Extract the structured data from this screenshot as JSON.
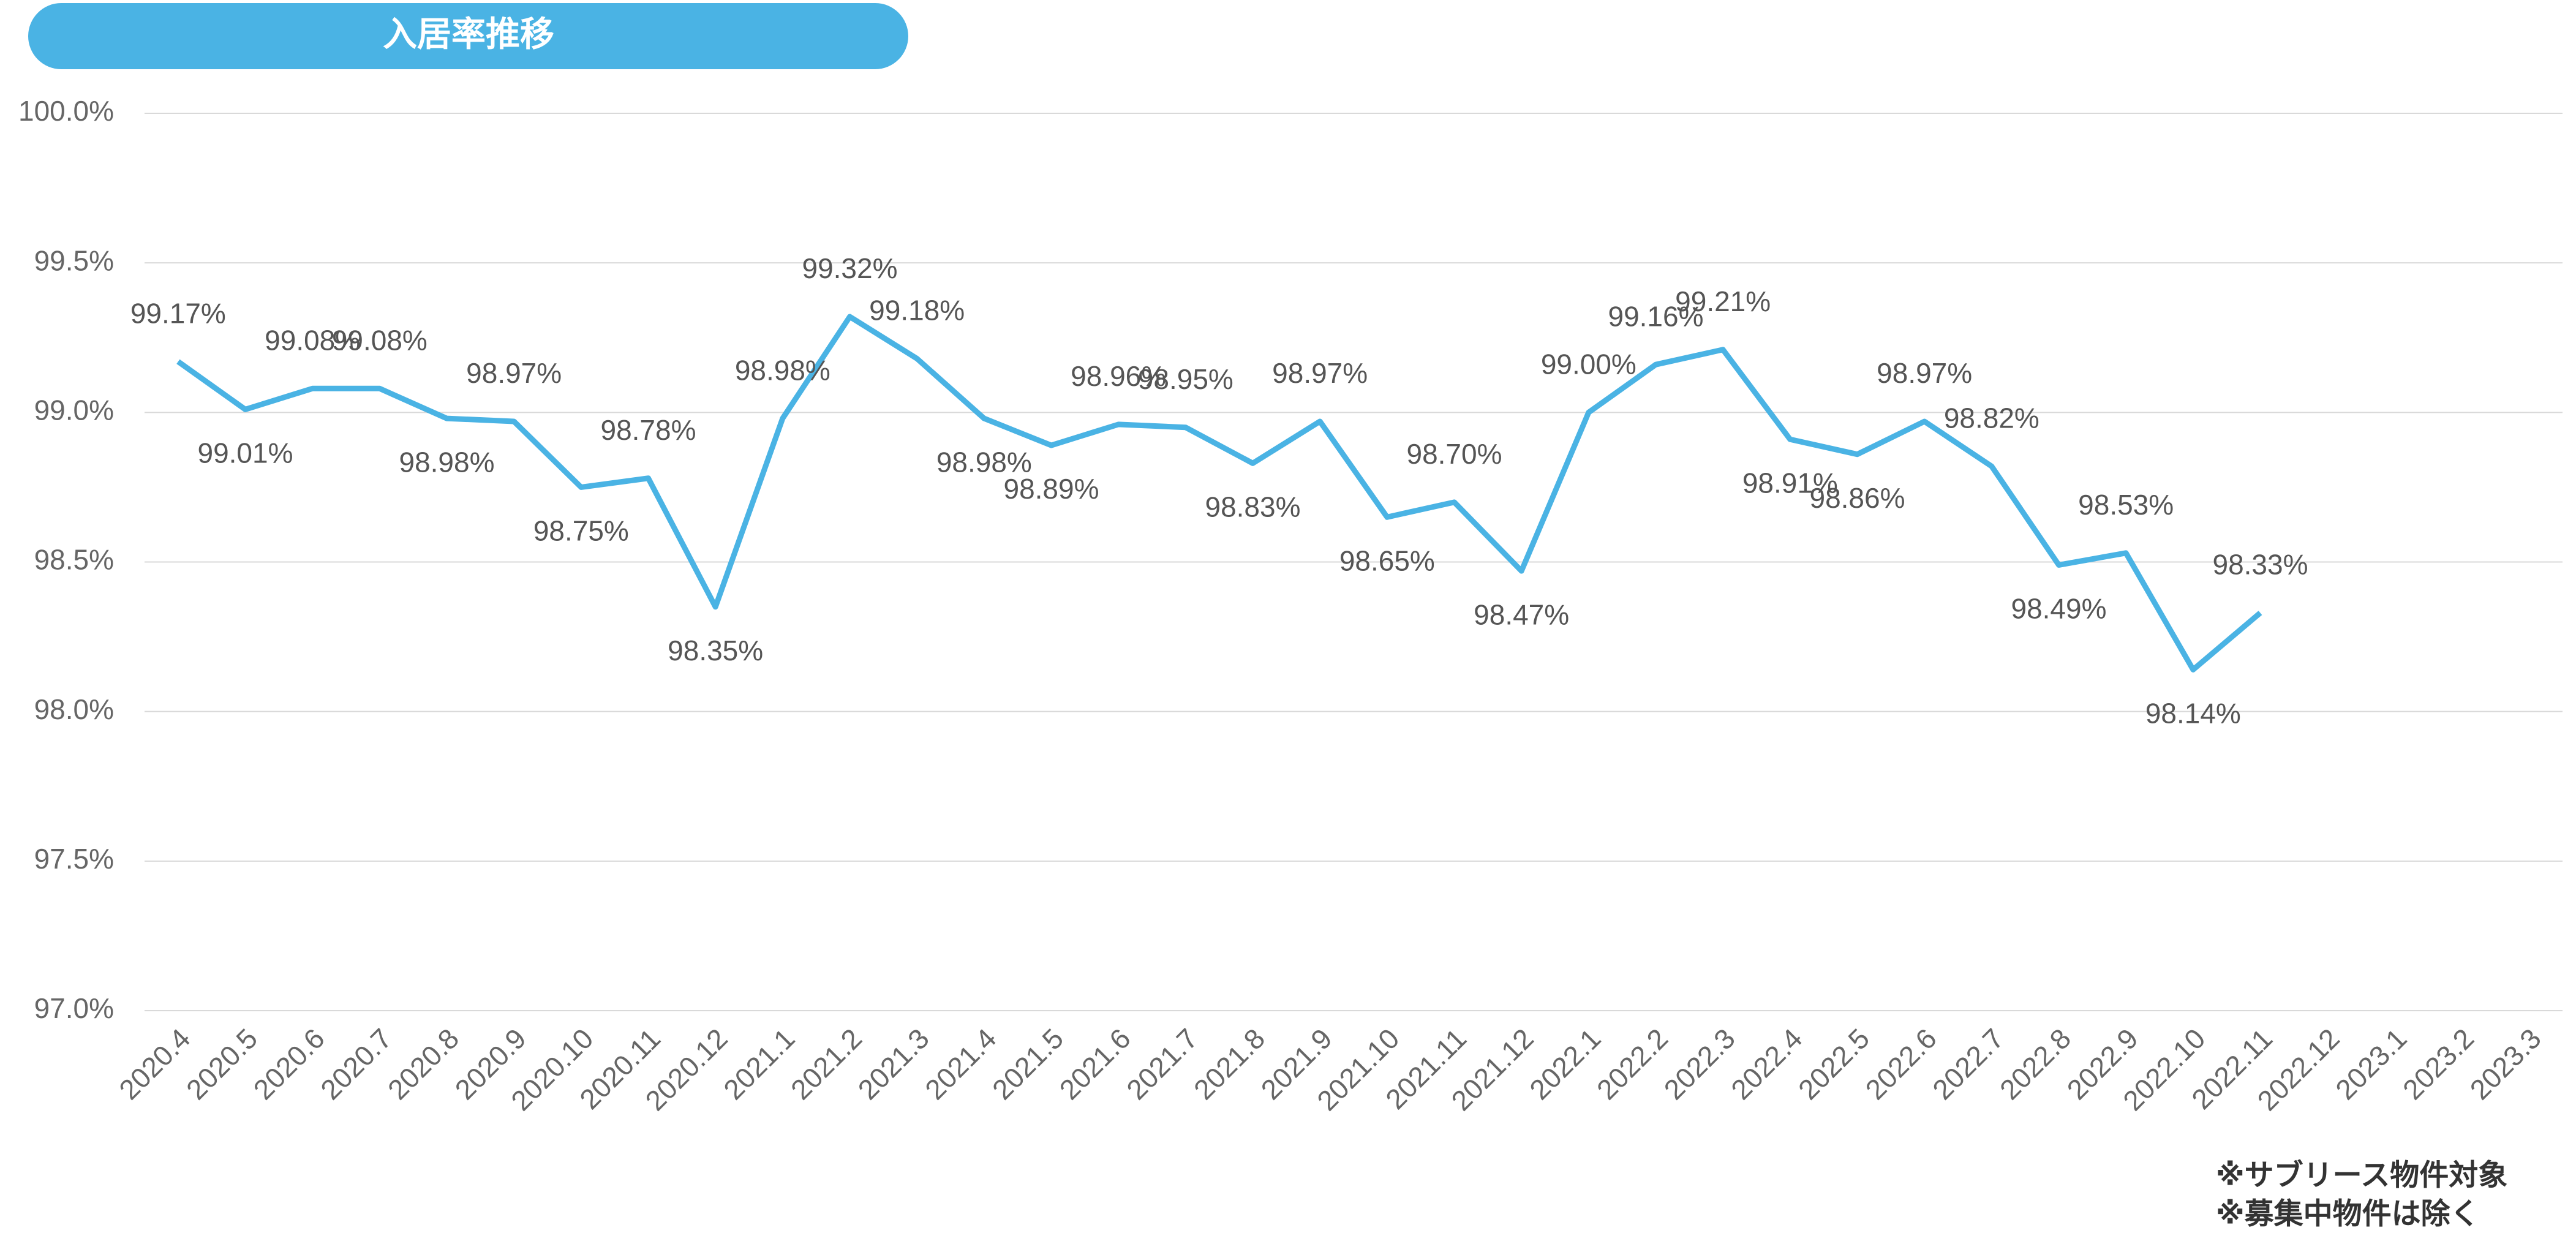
{
  "chart_data": {
    "type": "line",
    "title": "入居率推移",
    "categories": [
      "2020.4",
      "2020.5",
      "2020.6",
      "2020.7",
      "2020.8",
      "2020.9",
      "2020.10",
      "2020.11",
      "2020.12",
      "2021.1",
      "2021.2",
      "2021.3",
      "2021.4",
      "2021.5",
      "2021.6",
      "2021.7",
      "2021.8",
      "2021.9",
      "2021.10",
      "2021.11",
      "2021.12",
      "2022.1",
      "2022.2",
      "2022.3",
      "2022.4",
      "2022.5",
      "2022.6",
      "2022.7",
      "2022.8",
      "2022.9",
      "2022.10",
      "2022.11",
      "2022.12",
      "2023.1",
      "2023.2",
      "2023.3"
    ],
    "series": [
      {
        "color": "#4ab3e4",
        "values": [
          99.17,
          99.01,
          99.08,
          99.08,
          98.98,
          98.97,
          98.75,
          98.78,
          98.35,
          98.98,
          99.32,
          99.18,
          98.98,
          98.89,
          98.96,
          98.95,
          98.83,
          98.97,
          98.65,
          98.7,
          98.47,
          99.0,
          99.16,
          99.21,
          98.91,
          98.86,
          98.97,
          98.82,
          98.49,
          98.53,
          98.14,
          98.33,
          null,
          null,
          null,
          null
        ],
        "value_labels": [
          "99.17%",
          "99.01%",
          "99.08%",
          "99.08%",
          "98.98%",
          "98.97%",
          "98.75%",
          "98.78%",
          "98.35%",
          "98.98%",
          "99.32%",
          "99.18%",
          "98.98%",
          "98.89%",
          "98.96%",
          "98.95%",
          "98.83%",
          "98.97%",
          "98.65%",
          "98.70%",
          "98.47%",
          "99.00%",
          "99.16%",
          "99.21%",
          "98.91%",
          "98.86%",
          "98.97%",
          "98.82%",
          "98.49%",
          "98.53%",
          "98.14%",
          "98.33%",
          null,
          null,
          null,
          null
        ]
      }
    ],
    "ylim": [
      97,
      100
    ],
    "yticks": [
      {
        "value": 97,
        "label": "97.0%"
      },
      {
        "value": 97.5,
        "label": "97.5%"
      },
      {
        "value": 98,
        "label": "98.0%"
      },
      {
        "value": 98.5,
        "label": "98.5%"
      },
      {
        "value": 99,
        "label": "99.0%"
      },
      {
        "value": 99.5,
        "label": "99.5%"
      },
      {
        "value": 100,
        "label": "100.0%"
      }
    ],
    "grid": true,
    "annotations": [
      "※サブリース物件対象",
      "※募集中物件は除く"
    ]
  }
}
